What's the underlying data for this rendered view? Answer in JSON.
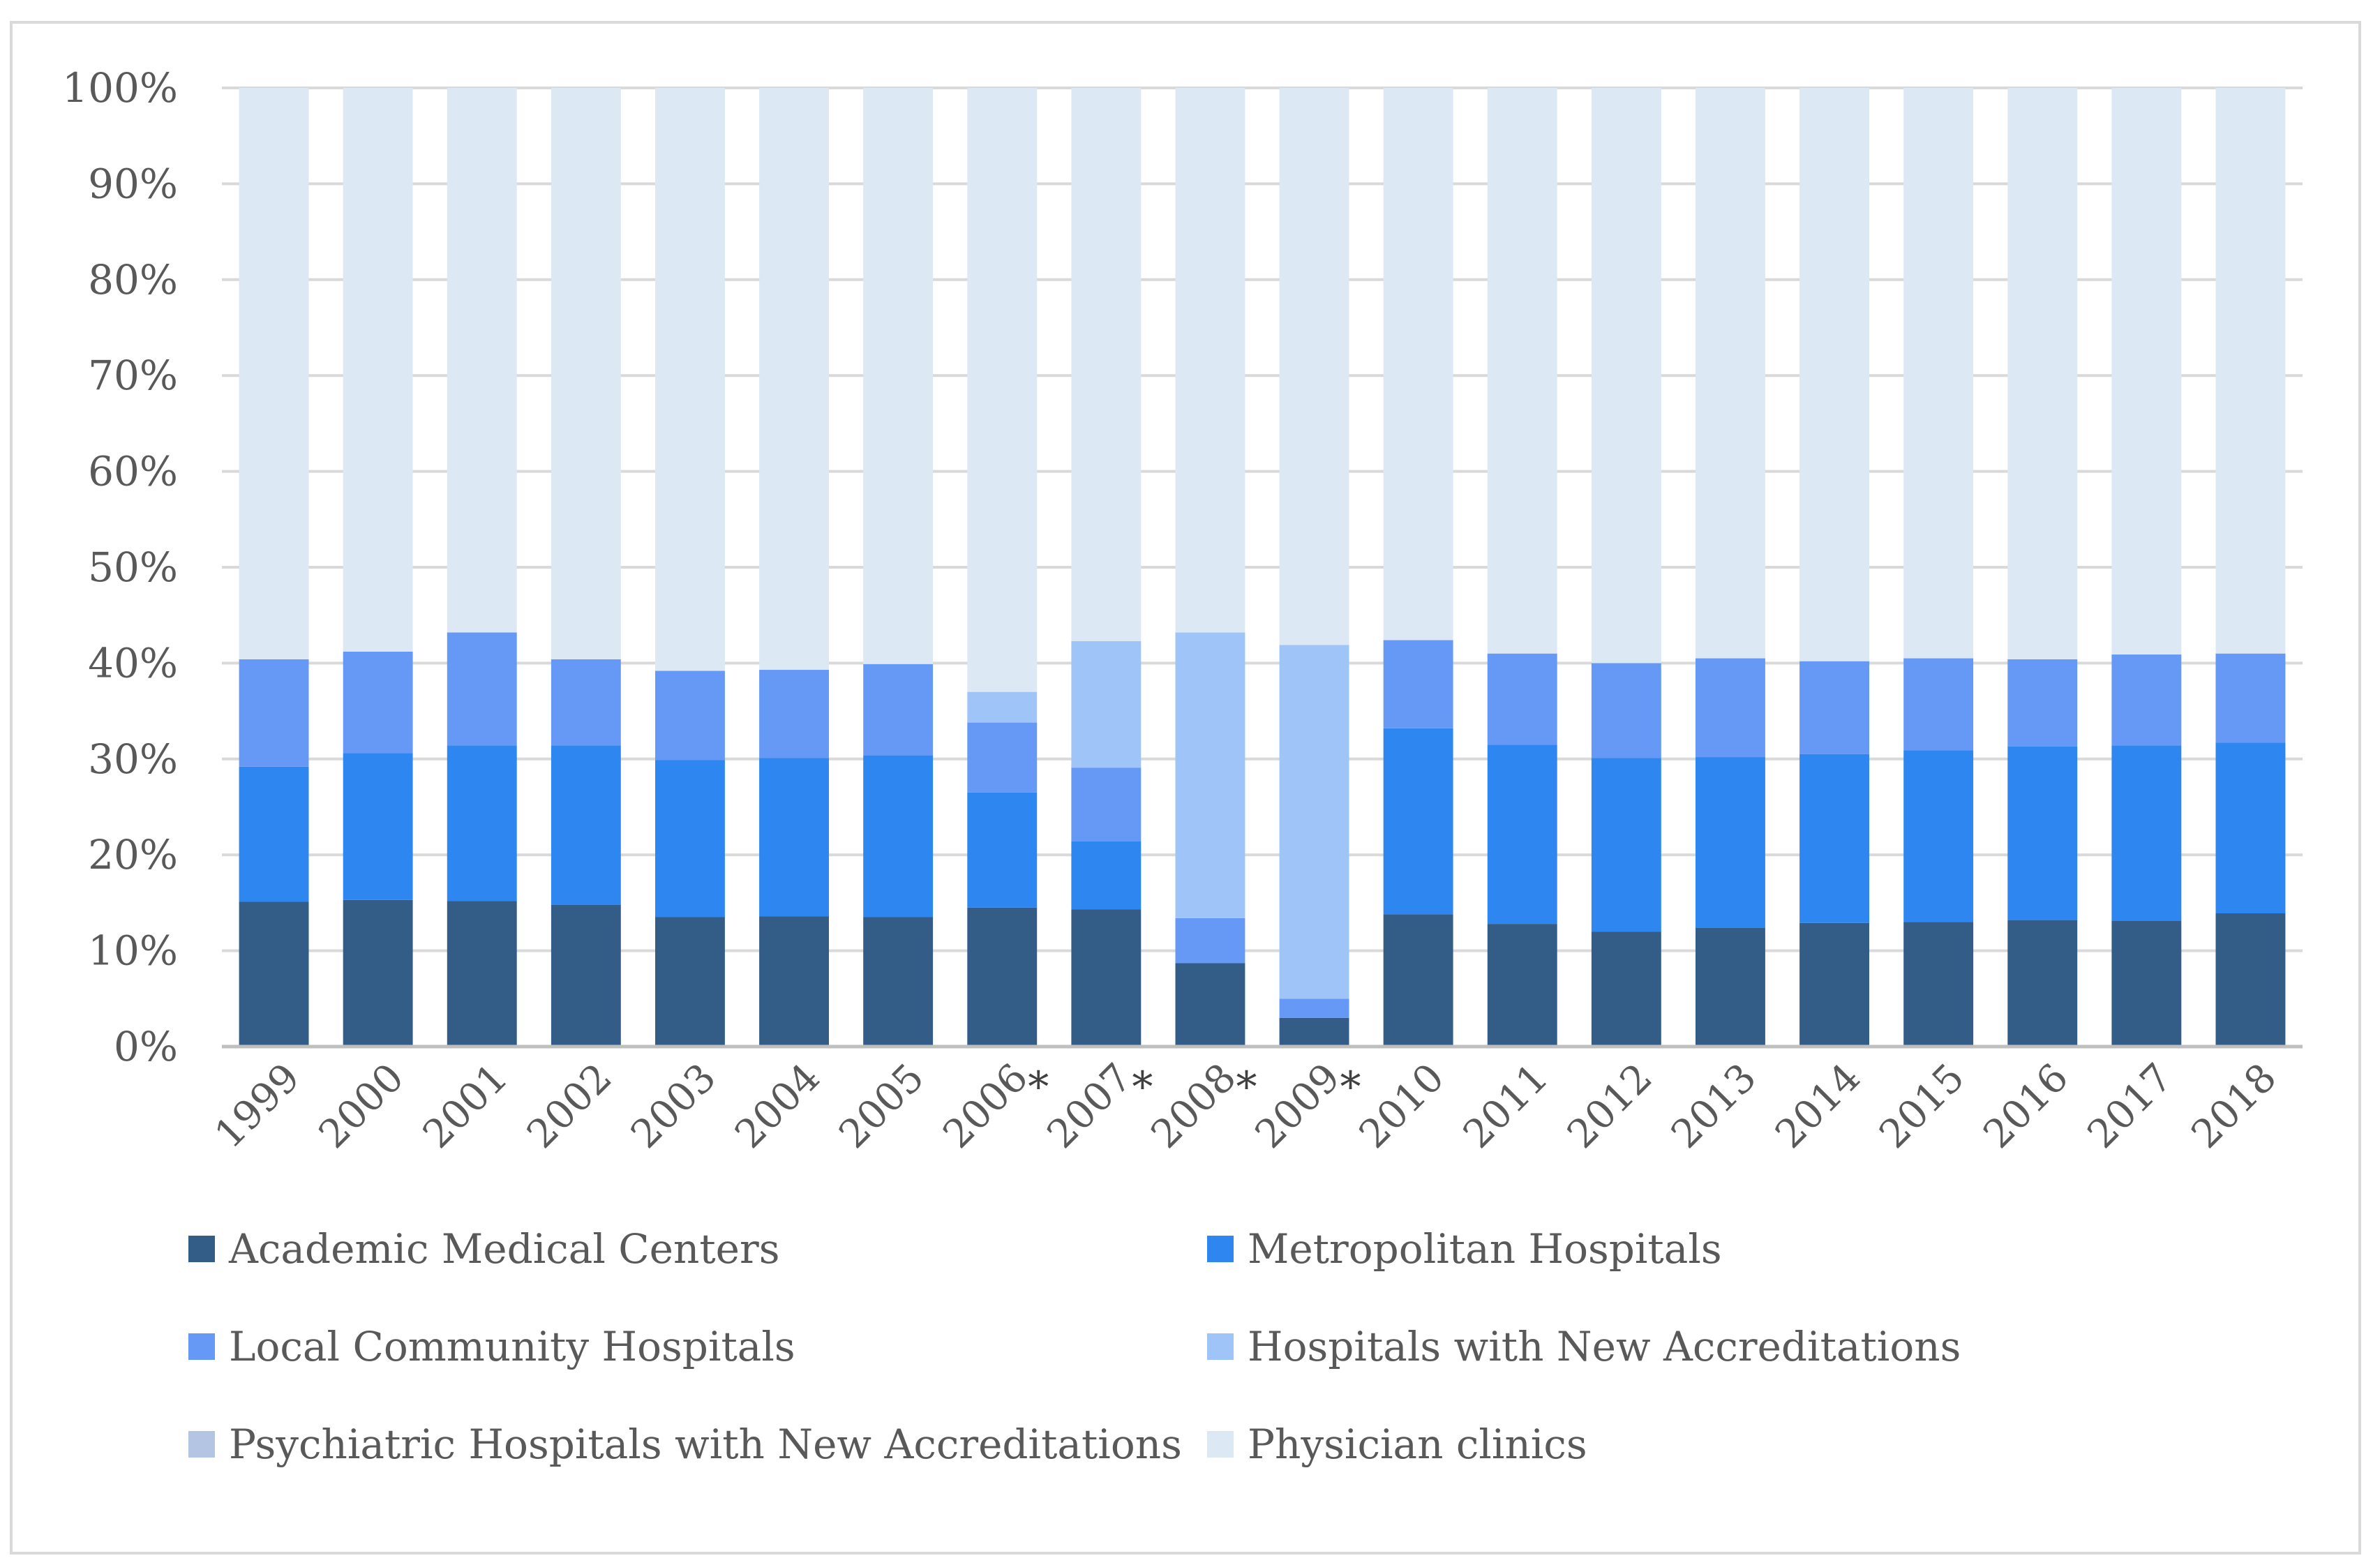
{
  "chart_data": {
    "type": "bar",
    "stacked": true,
    "percent": true,
    "title": "",
    "xlabel": "",
    "ylabel": "",
    "ylim": [
      0,
      100
    ],
    "yticks": [
      "0%",
      "10%",
      "20%",
      "30%",
      "40%",
      "50%",
      "60%",
      "70%",
      "80%",
      "90%",
      "100%"
    ],
    "categories": [
      "1999",
      "2000",
      "2001",
      "2002",
      "2003",
      "2004",
      "2005",
      "2006",
      "2007",
      "2008",
      "2009",
      "2010",
      "2011",
      "2012",
      "2013",
      "2014",
      "2015",
      "2016",
      "2017",
      "2018"
    ],
    "starred": [
      "2006",
      "2007",
      "2008",
      "2009"
    ],
    "star_label": "*",
    "legend_position": "bottom",
    "series": [
      {
        "name": "Academic Medical Centers",
        "color": "#335c87",
        "values": [
          15.1,
          15.3,
          15.2,
          14.8,
          13.5,
          13.6,
          13.5,
          14.5,
          14.3,
          8.7,
          3.0,
          13.8,
          12.8,
          12.0,
          12.4,
          12.9,
          13.0,
          13.2,
          13.1,
          13.9
        ]
      },
      {
        "name": "Metropolitan Hospitals",
        "color": "#2e86f0",
        "values": [
          14.1,
          15.3,
          16.2,
          16.6,
          16.4,
          16.5,
          16.9,
          12.0,
          7.1,
          0.0,
          0.0,
          19.4,
          18.7,
          18.1,
          17.8,
          17.6,
          17.9,
          18.1,
          18.3,
          17.8
        ]
      },
      {
        "name": "Local Community Hospitals",
        "color": "#6699f5",
        "values": [
          11.2,
          10.6,
          11.8,
          9.0,
          9.3,
          9.2,
          9.5,
          7.3,
          7.7,
          4.7,
          2.0,
          9.2,
          9.5,
          9.9,
          10.3,
          9.7,
          9.6,
          9.1,
          9.5,
          9.3
        ]
      },
      {
        "name": "Hospitals with New Accreditations",
        "color": "#9fc5f8",
        "values": [
          0,
          0,
          0,
          0,
          0,
          0,
          0,
          3.2,
          13.2,
          29.8,
          36.9,
          0,
          0,
          0,
          0,
          0,
          0,
          0,
          0,
          0
        ]
      },
      {
        "name": "Psychiatric Hospitals with New Accreditations",
        "color": "#b4c5e4",
        "values": [
          0,
          0,
          0,
          0,
          0,
          0,
          0,
          0,
          0,
          0,
          0,
          0,
          0,
          0,
          0,
          0,
          0,
          0,
          0,
          0
        ]
      },
      {
        "name": "Physician clinics",
        "color": "#dde8f5",
        "values": [
          59.6,
          58.8,
          56.8,
          59.6,
          60.8,
          60.7,
          60.1,
          63.0,
          57.7,
          56.8,
          58.1,
          57.6,
          59.0,
          60.0,
          59.5,
          59.8,
          59.5,
          59.6,
          59.1,
          59.0
        ]
      }
    ]
  }
}
